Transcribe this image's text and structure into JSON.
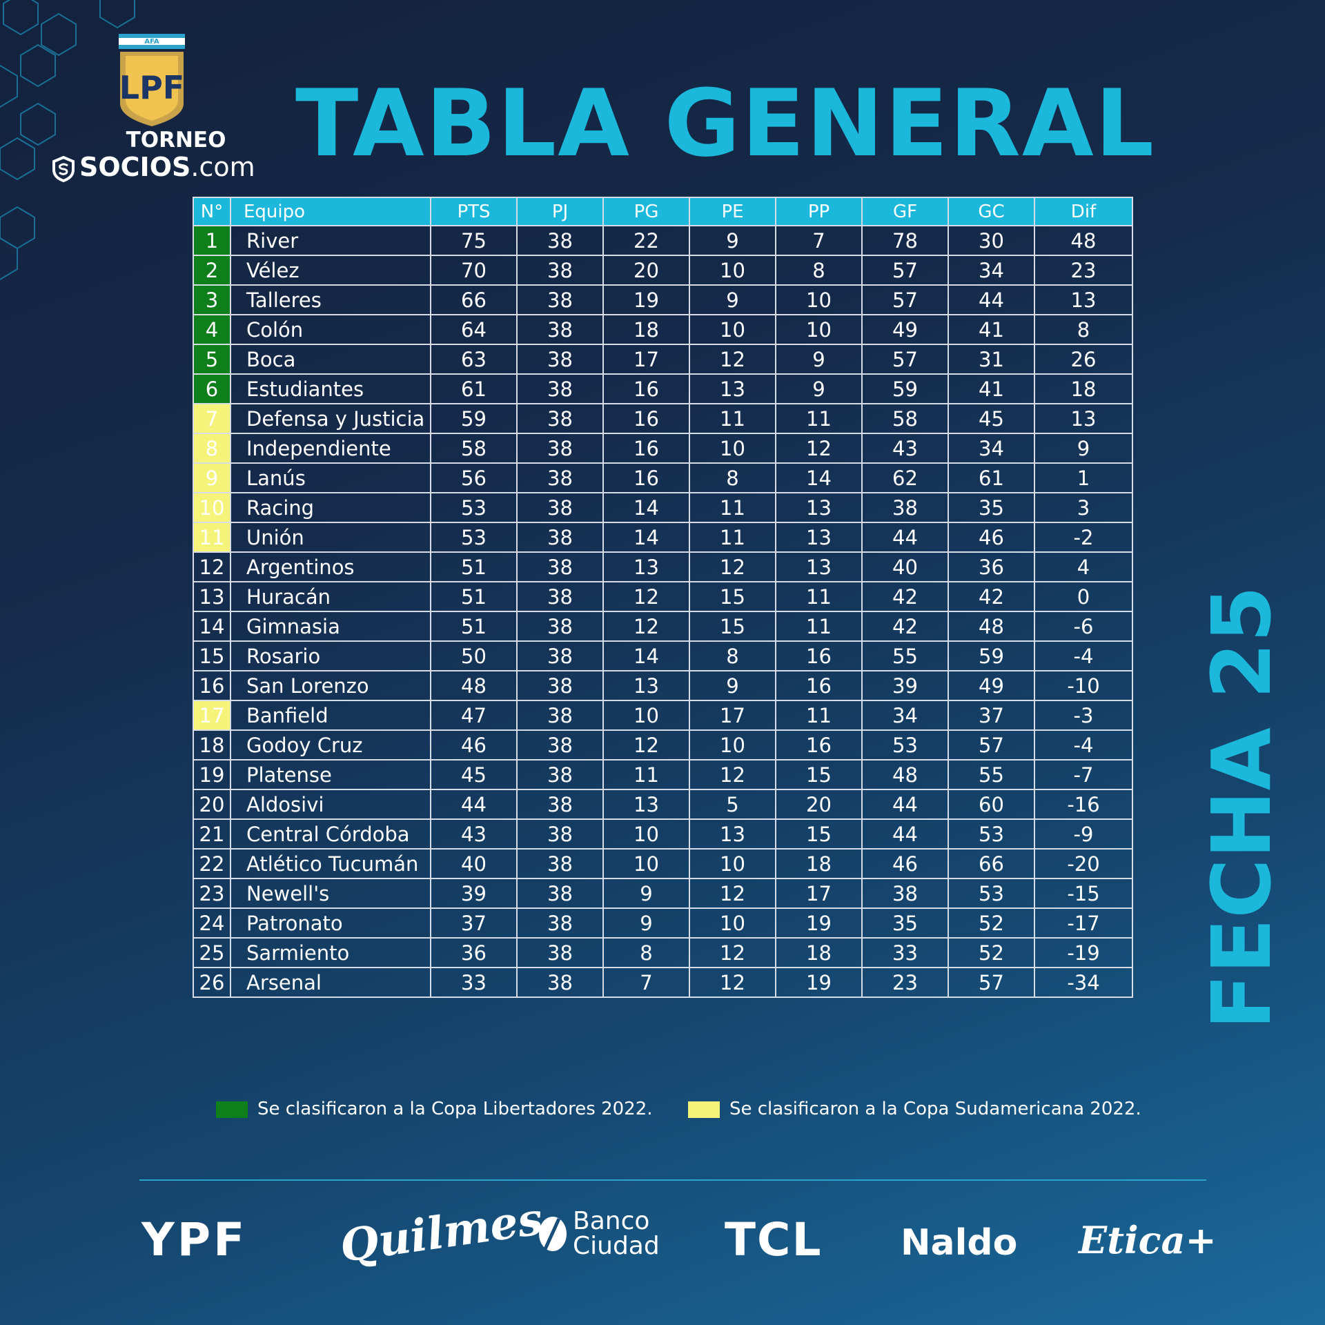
{
  "branding": {
    "afa_label": "AFA",
    "lpf_monogram": "LPF",
    "torneo_label": "TORNEO",
    "socios_bold": "SOCIOS",
    "socios_suffix": ".com"
  },
  "title": "TABLA GENERAL",
  "fecha_label": "FECHA 25",
  "colors": {
    "accent": "#1cb8dc",
    "libertadores": "#0f7f1c",
    "sudamericana": "#f6f37a",
    "background_top": "#13223d",
    "background_bottom": "#1a6a9c"
  },
  "table": {
    "headers": [
      "N°",
      "Equipo",
      "PTS",
      "PJ",
      "PG",
      "PE",
      "PP",
      "GF",
      "GC",
      "Dif"
    ],
    "rows": [
      {
        "pos": "1",
        "team": "River",
        "pts": "75",
        "pj": "38",
        "pg": "22",
        "pe": "9",
        "pp": "7",
        "gf": "78",
        "gc": "30",
        "dif": "48",
        "qual": "libertadores"
      },
      {
        "pos": "2",
        "team": "Vélez",
        "pts": "70",
        "pj": "38",
        "pg": "20",
        "pe": "10",
        "pp": "8",
        "gf": "57",
        "gc": "34",
        "dif": "23",
        "qual": "libertadores"
      },
      {
        "pos": "3",
        "team": "Talleres",
        "pts": "66",
        "pj": "38",
        "pg": "19",
        "pe": "9",
        "pp": "10",
        "gf": "57",
        "gc": "44",
        "dif": "13",
        "qual": "libertadores"
      },
      {
        "pos": "4",
        "team": "Colón",
        "pts": "64",
        "pj": "38",
        "pg": "18",
        "pe": "10",
        "pp": "10",
        "gf": "49",
        "gc": "41",
        "dif": "8",
        "qual": "libertadores"
      },
      {
        "pos": "5",
        "team": "Boca",
        "pts": "63",
        "pj": "38",
        "pg": "17",
        "pe": "12",
        "pp": "9",
        "gf": "57",
        "gc": "31",
        "dif": "26",
        "qual": "libertadores"
      },
      {
        "pos": "6",
        "team": "Estudiantes",
        "pts": "61",
        "pj": "38",
        "pg": "16",
        "pe": "13",
        "pp": "9",
        "gf": "59",
        "gc": "41",
        "dif": "18",
        "qual": "libertadores"
      },
      {
        "pos": "7",
        "team": "Defensa y Justicia",
        "pts": "59",
        "pj": "38",
        "pg": "16",
        "pe": "11",
        "pp": "11",
        "gf": "58",
        "gc": "45",
        "dif": "13",
        "qual": "sudamericana"
      },
      {
        "pos": "8",
        "team": "Independiente",
        "pts": "58",
        "pj": "38",
        "pg": "16",
        "pe": "10",
        "pp": "12",
        "gf": "43",
        "gc": "34",
        "dif": "9",
        "qual": "sudamericana"
      },
      {
        "pos": "9",
        "team": "Lanús",
        "pts": "56",
        "pj": "38",
        "pg": "16",
        "pe": "8",
        "pp": "14",
        "gf": "62",
        "gc": "61",
        "dif": "1",
        "qual": "sudamericana"
      },
      {
        "pos": "10",
        "team": "Racing",
        "pts": "53",
        "pj": "38",
        "pg": "14",
        "pe": "11",
        "pp": "13",
        "gf": "38",
        "gc": "35",
        "dif": "3",
        "qual": "sudamericana"
      },
      {
        "pos": "11",
        "team": "Unión",
        "pts": "53",
        "pj": "38",
        "pg": "14",
        "pe": "11",
        "pp": "13",
        "gf": "44",
        "gc": "46",
        "dif": "-2",
        "qual": "sudamericana"
      },
      {
        "pos": "12",
        "team": "Argentinos",
        "pts": "51",
        "pj": "38",
        "pg": "13",
        "pe": "12",
        "pp": "13",
        "gf": "40",
        "gc": "36",
        "dif": "4",
        "qual": ""
      },
      {
        "pos": "13",
        "team": "Huracán",
        "pts": "51",
        "pj": "38",
        "pg": "12",
        "pe": "15",
        "pp": "11",
        "gf": "42",
        "gc": "42",
        "dif": "0",
        "qual": ""
      },
      {
        "pos": "14",
        "team": "Gimnasia",
        "pts": "51",
        "pj": "38",
        "pg": "12",
        "pe": "15",
        "pp": "11",
        "gf": "42",
        "gc": "48",
        "dif": "-6",
        "qual": ""
      },
      {
        "pos": "15",
        "team": "Rosario",
        "pts": "50",
        "pj": "38",
        "pg": "14",
        "pe": "8",
        "pp": "16",
        "gf": "55",
        "gc": "59",
        "dif": "-4",
        "qual": ""
      },
      {
        "pos": "16",
        "team": "San Lorenzo",
        "pts": "48",
        "pj": "38",
        "pg": "13",
        "pe": "9",
        "pp": "16",
        "gf": "39",
        "gc": "49",
        "dif": "-10",
        "qual": ""
      },
      {
        "pos": "17",
        "team": "Banfield",
        "pts": "47",
        "pj": "38",
        "pg": "10",
        "pe": "17",
        "pp": "11",
        "gf": "34",
        "gc": "37",
        "dif": "-3",
        "qual": "sudamericana"
      },
      {
        "pos": "18",
        "team": "Godoy Cruz",
        "pts": "46",
        "pj": "38",
        "pg": "12",
        "pe": "10",
        "pp": "16",
        "gf": "53",
        "gc": "57",
        "dif": "-4",
        "qual": ""
      },
      {
        "pos": "19",
        "team": "Platense",
        "pts": "45",
        "pj": "38",
        "pg": "11",
        "pe": "12",
        "pp": "15",
        "gf": "48",
        "gc": "55",
        "dif": "-7",
        "qual": ""
      },
      {
        "pos": "20",
        "team": "Aldosivi",
        "pts": "44",
        "pj": "38",
        "pg": "13",
        "pe": "5",
        "pp": "20",
        "gf": "44",
        "gc": "60",
        "dif": "-16",
        "qual": ""
      },
      {
        "pos": "21",
        "team": "Central Córdoba",
        "pts": "43",
        "pj": "38",
        "pg": "10",
        "pe": "13",
        "pp": "15",
        "gf": "44",
        "gc": "53",
        "dif": "-9",
        "qual": ""
      },
      {
        "pos": "22",
        "team": "Atlético Tucumán",
        "pts": "40",
        "pj": "38",
        "pg": "10",
        "pe": "10",
        "pp": "18",
        "gf": "46",
        "gc": "66",
        "dif": "-20",
        "qual": ""
      },
      {
        "pos": "23",
        "team": "Newell's",
        "pts": "39",
        "pj": "38",
        "pg": "9",
        "pe": "12",
        "pp": "17",
        "gf": "38",
        "gc": "53",
        "dif": "-15",
        "qual": ""
      },
      {
        "pos": "24",
        "team": "Patronato",
        "pts": "37",
        "pj": "38",
        "pg": "9",
        "pe": "10",
        "pp": "19",
        "gf": "35",
        "gc": "52",
        "dif": "-17",
        "qual": ""
      },
      {
        "pos": "25",
        "team": "Sarmiento",
        "pts": "36",
        "pj": "38",
        "pg": "8",
        "pe": "12",
        "pp": "18",
        "gf": "33",
        "gc": "52",
        "dif": "-19",
        "qual": ""
      },
      {
        "pos": "26",
        "team": "Arsenal",
        "pts": "33",
        "pj": "38",
        "pg": "7",
        "pe": "12",
        "pp": "19",
        "gf": "23",
        "gc": "57",
        "dif": "-34",
        "qual": ""
      }
    ]
  },
  "legend": {
    "libertadores": "Se clasificaron a la Copa Libertadores 2022.",
    "sudamericana": "Se clasificaron a la Copa Sudamericana 2022."
  },
  "sponsors": {
    "ypf": "YPF",
    "quilmes": "Quilmes",
    "banco_line1": "Banco",
    "banco_line2": "Ciudad",
    "tcl": "TCL",
    "naldo": "Naldo",
    "etica": "Etica+"
  }
}
